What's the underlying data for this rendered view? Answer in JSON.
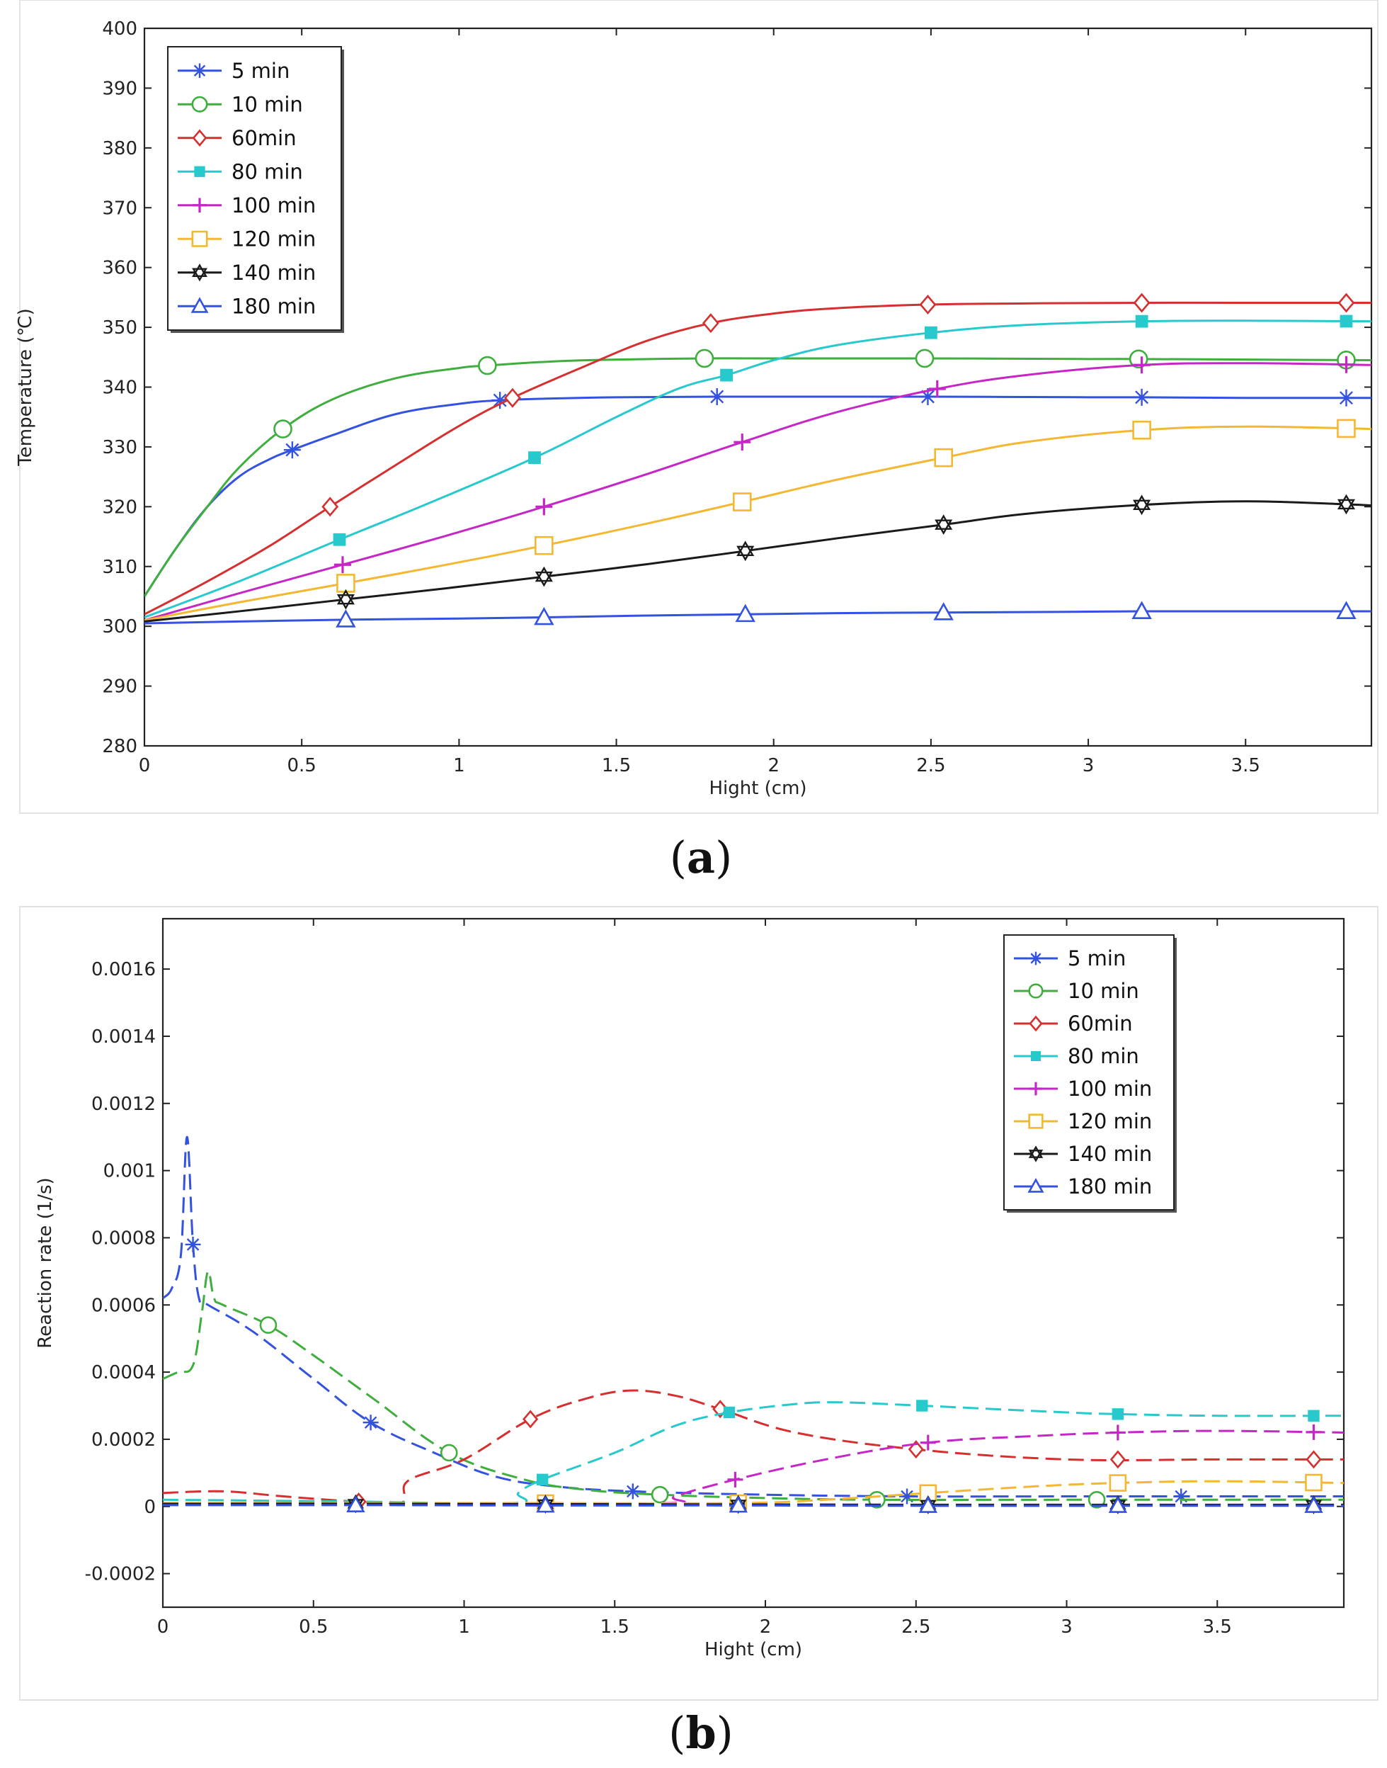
{
  "chart_data": [
    {
      "type": "line",
      "panel_label": "a",
      "title": "",
      "xlabel": "Hight (cm)",
      "ylabel": "Temperature (℃)",
      "xlim": [
        0,
        3.9
      ],
      "ylim": [
        280,
        400
      ],
      "x_ticks": [
        0,
        0.5,
        1,
        1.5,
        2,
        2.5,
        3,
        3.5
      ],
      "x_tick_labels": [
        "0",
        "0.5",
        "1",
        "1.5",
        "2",
        "2.5",
        "3",
        "3.5"
      ],
      "y_ticks": [
        280,
        290,
        300,
        310,
        320,
        330,
        340,
        350,
        360,
        370,
        380,
        390,
        400
      ],
      "y_tick_labels": [
        "280",
        "290",
        "300",
        "310",
        "320",
        "330",
        "340",
        "350",
        "360",
        "370",
        "380",
        "390",
        "400"
      ],
      "legend_position": "top-left",
      "series": [
        {
          "name": "5 min",
          "color": "#3352e0",
          "marker": "star",
          "dash": "solid",
          "x": [
            0,
            0.1,
            0.2,
            0.3,
            0.4,
            0.47,
            0.6,
            0.8,
            1.0,
            1.13,
            1.3,
            1.5,
            1.82,
            2.2,
            2.5,
            3.0,
            3.17,
            3.5,
            3.9
          ],
          "y": [
            305,
            313,
            320,
            325,
            328,
            329.5,
            332,
            335.5,
            337.2,
            337.8,
            338.1,
            338.3,
            338.4,
            338.4,
            338.4,
            338.3,
            338.3,
            338.2,
            338.2
          ],
          "markers_x": [
            0.47,
            1.13,
            1.82,
            2.49,
            3.17,
            3.82
          ]
        },
        {
          "name": "10 min",
          "color": "#3fae3f",
          "marker": "circle",
          "dash": "solid",
          "x": [
            0,
            0.1,
            0.2,
            0.3,
            0.44,
            0.6,
            0.8,
            1.0,
            1.09,
            1.3,
            1.5,
            1.78,
            2.0,
            2.48,
            3.0,
            3.16,
            3.5,
            3.9
          ],
          "y": [
            305,
            313,
            320,
            326.5,
            333,
            338,
            341.5,
            343.2,
            343.6,
            344.3,
            344.6,
            344.8,
            344.8,
            344.8,
            344.7,
            344.7,
            344.6,
            344.5
          ],
          "markers_x": [
            0.44,
            1.09,
            1.78,
            2.48,
            3.16,
            3.82
          ]
        },
        {
          "name": "60min",
          "color": "#d62f2f",
          "marker": "diamond",
          "dash": "solid",
          "x": [
            0,
            0.2,
            0.4,
            0.59,
            0.8,
            1.0,
            1.17,
            1.4,
            1.6,
            1.8,
            2.0,
            2.2,
            2.49,
            2.8,
            3.17,
            3.5,
            3.9
          ],
          "y": [
            302,
            307.5,
            313.5,
            320,
            327,
            333.5,
            338.2,
            343.5,
            347.8,
            350.7,
            352.3,
            353.2,
            353.8,
            354,
            354.1,
            354.1,
            354.1
          ],
          "markers_x": [
            0.59,
            1.17,
            1.8,
            2.49,
            3.17,
            3.82
          ]
        },
        {
          "name": "80 min",
          "color": "#27c9cc",
          "marker": "square-filled",
          "dash": "solid",
          "x": [
            0,
            0.3,
            0.62,
            0.9,
            1.24,
            1.5,
            1.7,
            1.85,
            2.0,
            2.2,
            2.5,
            2.8,
            3.17,
            3.5,
            3.9
          ],
          "y": [
            301.5,
            307.5,
            314.5,
            320.5,
            328.2,
            335,
            339.8,
            342,
            344.5,
            347,
            349.1,
            350.4,
            351,
            351.1,
            351
          ],
          "markers_x": [
            0.62,
            1.24,
            1.85,
            2.5,
            3.17,
            3.82
          ]
        },
        {
          "name": "100 min",
          "color": "#c526c5",
          "marker": "plus",
          "dash": "solid",
          "x": [
            0,
            0.3,
            0.63,
            0.95,
            1.27,
            1.6,
            1.9,
            2.2,
            2.52,
            2.8,
            3.17,
            3.5,
            3.9
          ],
          "y": [
            301,
            305.5,
            310.3,
            315,
            320,
            325.5,
            330.8,
            335.8,
            339.7,
            342,
            343.7,
            344,
            343.7
          ],
          "markers_x": [
            0.63,
            1.27,
            1.9,
            2.52,
            3.17,
            3.82
          ]
        },
        {
          "name": "120 min",
          "color": "#f4b731",
          "marker": "square",
          "dash": "solid",
          "x": [
            0,
            0.3,
            0.64,
            0.95,
            1.27,
            1.6,
            1.9,
            2.2,
            2.54,
            2.8,
            3.17,
            3.5,
            3.9
          ],
          "y": [
            301,
            304,
            307.2,
            310.2,
            313.5,
            317.2,
            320.8,
            324.5,
            328.2,
            330.8,
            332.8,
            333.4,
            333
          ],
          "markers_x": [
            0.64,
            1.27,
            1.9,
            2.54,
            3.17,
            3.82
          ]
        },
        {
          "name": "140 min",
          "color": "#1a1a1a",
          "marker": "hexagram",
          "dash": "solid",
          "x": [
            0,
            0.3,
            0.64,
            0.95,
            1.27,
            1.6,
            1.91,
            2.2,
            2.54,
            2.8,
            3.17,
            3.5,
            3.82,
            3.9
          ],
          "y": [
            300.8,
            302.5,
            304.5,
            306.3,
            308.3,
            310.4,
            312.6,
            314.7,
            317,
            318.8,
            320.3,
            320.9,
            320.4,
            320.2
          ],
          "markers_x": [
            0.64,
            1.27,
            1.91,
            2.54,
            3.17,
            3.82
          ]
        },
        {
          "name": "180 min",
          "color": "#3352e0",
          "marker": "triangle",
          "dash": "solid",
          "x": [
            0,
            0.3,
            0.64,
            1.0,
            1.27,
            1.6,
            1.91,
            2.2,
            2.54,
            2.9,
            3.17,
            3.5,
            3.9
          ],
          "y": [
            300.5,
            300.8,
            301.1,
            301.3,
            301.5,
            301.8,
            302,
            302.2,
            302.3,
            302.4,
            302.5,
            302.5,
            302.5
          ],
          "markers_x": [
            0.64,
            1.27,
            1.91,
            2.54,
            3.17,
            3.82
          ]
        }
      ]
    },
    {
      "type": "line",
      "panel_label": "b",
      "title": "",
      "xlabel": "Hight (cm)",
      "ylabel": "Reaction rate (1/s)",
      "xlim": [
        0,
        3.92
      ],
      "ylim": [
        -0.0003,
        0.00175
      ],
      "x_ticks": [
        0,
        0.5,
        1,
        1.5,
        2,
        2.5,
        3,
        3.5
      ],
      "x_tick_labels": [
        "0",
        "0.5",
        "1",
        "1.5",
        "2",
        "2.5",
        "3",
        "3.5"
      ],
      "y_ticks": [
        -0.0002,
        0,
        0.0002,
        0.0004,
        0.0006,
        0.0008,
        0.001,
        0.0012,
        0.0014,
        0.0016
      ],
      "y_tick_labels": [
        "-0.0002",
        "0",
        "0.0002",
        "0.0004",
        "0.0006",
        "0.0008",
        "0.001",
        "0.0012",
        "0.0014",
        "0.0016"
      ],
      "legend_position": "top-right",
      "series": [
        {
          "name": "5 min",
          "color": "#3352e0",
          "marker": "star",
          "dash": "dashed",
          "x": [
            0,
            0.03,
            0.06,
            0.08,
            0.1,
            0.12,
            0.15,
            0.3,
            0.5,
            0.69,
            0.9,
            1.1,
            1.3,
            1.56,
            2.0,
            2.47,
            3.0,
            3.38,
            3.92
          ],
          "y": [
            0.00062,
            0.00065,
            0.00075,
            0.0011,
            0.00078,
            0.00062,
            0.0006,
            0.00052,
            0.00038,
            0.00025,
            0.00016,
            9e-05,
            6e-05,
            4.5e-05,
            3.5e-05,
            3e-05,
            3e-05,
            3e-05,
            3e-05
          ],
          "markers_x": [
            0.1,
            0.69,
            1.56,
            2.47,
            3.38
          ]
        },
        {
          "name": "10 min",
          "color": "#3fae3f",
          "marker": "circle",
          "dash": "dashed",
          "x": [
            0,
            0.05,
            0.1,
            0.13,
            0.15,
            0.17,
            0.2,
            0.35,
            0.5,
            0.7,
            0.95,
            1.2,
            1.4,
            1.65,
            2.0,
            2.37,
            3.1,
            3.92
          ],
          "y": [
            0.00038,
            0.0004,
            0.00042,
            0.00058,
            0.0007,
            0.00062,
            0.0006,
            0.00054,
            0.00045,
            0.00032,
            0.00016,
            8e-05,
            5e-05,
            3.5e-05,
            2.5e-05,
            2e-05,
            2e-05,
            2e-05
          ],
          "markers_x": [
            0.35,
            0.95,
            1.65,
            2.37,
            3.1
          ]
        },
        {
          "name": "60min",
          "color": "#d62f2f",
          "marker": "diamond",
          "dash": "dashed",
          "x": [
            0,
            0.2,
            0.4,
            0.63,
            0.78,
            0.8,
            0.82,
            1.0,
            1.22,
            1.4,
            1.55,
            1.7,
            1.85,
            2.1,
            2.5,
            3.0,
            3.5,
            3.92
          ],
          "y": [
            4e-05,
            4.5e-05,
            3e-05,
            1.5e-05,
            1e-05,
            3e-05,
            8e-05,
            0.00014,
            0.00026,
            0.00032,
            0.000345,
            0.00033,
            0.00029,
            0.00022,
            0.00017,
            0.00014,
            0.00014,
            0.00014
          ],
          "markers_x": [
            0.65,
            1.22,
            1.85,
            2.5,
            3.17,
            3.82
          ]
        },
        {
          "name": "80 min",
          "color": "#27c9cc",
          "marker": "square-filled",
          "dash": "dashed",
          "x": [
            0,
            0.6,
            1.16,
            1.18,
            1.26,
            1.5,
            1.7,
            1.88,
            2.1,
            2.25,
            2.52,
            3.0,
            3.17,
            3.5,
            3.92
          ],
          "y": [
            2e-05,
            1.5e-05,
            1e-05,
            4e-05,
            8e-05,
            0.00016,
            0.00024,
            0.00028,
            0.000305,
            0.00031,
            0.0003,
            0.00028,
            0.000275,
            0.00027,
            0.00027
          ],
          "markers_x": [
            1.26,
            1.88,
            2.52,
            3.17,
            3.82
          ]
        },
        {
          "name": "100 min",
          "color": "#c526c5",
          "marker": "plus",
          "dash": "dashed",
          "x": [
            0,
            1.0,
            1.68,
            1.7,
            1.9,
            2.2,
            2.54,
            2.9,
            3.17,
            3.5,
            3.92
          ],
          "y": [
            1e-05,
            1e-05,
            1e-05,
            3e-05,
            8e-05,
            0.00014,
            0.00019,
            0.00021,
            0.00022,
            0.000225,
            0.00022
          ],
          "markers_x": [
            1.9,
            2.54,
            3.17,
            3.82
          ]
        },
        {
          "name": "120 min",
          "color": "#f4b731",
          "marker": "square",
          "dash": "dashed",
          "x": [
            0,
            0.64,
            1.27,
            1.91,
            2.2,
            2.54,
            2.9,
            3.17,
            3.5,
            3.92
          ],
          "y": [
            1e-05,
            1e-05,
            1e-05,
            1e-05,
            2e-05,
            4e-05,
            6e-05,
            7e-05,
            7.5e-05,
            7e-05
          ],
          "markers_x": [
            1.27,
            1.91,
            2.54,
            3.17,
            3.82
          ]
        },
        {
          "name": "140 min",
          "color": "#1a1a1a",
          "marker": "hexagram",
          "dash": "dashed",
          "x": [
            0,
            0.64,
            1.27,
            1.91,
            2.54,
            3.17,
            3.82,
            3.92
          ],
          "y": [
            8e-06,
            8e-06,
            7e-06,
            6e-06,
            5e-06,
            5e-06,
            5e-06,
            5e-06
          ],
          "markers_x": [
            0.64,
            1.27,
            1.91,
            2.54,
            3.17,
            3.82
          ]
        },
        {
          "name": "180 min",
          "color": "#3352e0",
          "marker": "triangle",
          "dash": "dashed",
          "x": [
            0,
            0.64,
            1.27,
            1.91,
            2.54,
            3.17,
            3.82,
            3.92
          ],
          "y": [
            4e-06,
            4e-06,
            3e-06,
            3e-06,
            2e-06,
            2e-06,
            2e-06,
            2e-06
          ],
          "markers_x": [
            0.64,
            1.27,
            1.91,
            2.54,
            3.17,
            3.82
          ]
        }
      ]
    }
  ]
}
